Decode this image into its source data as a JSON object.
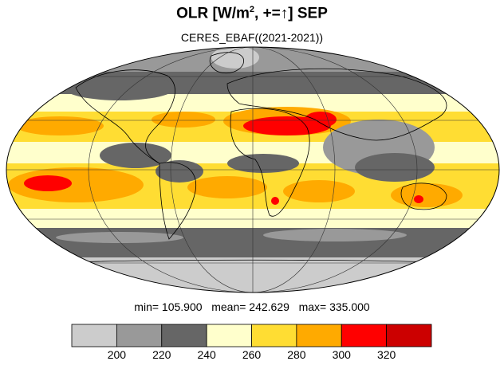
{
  "title": {
    "prefix": "OLR [W/m",
    "exp": "2",
    "mid": ", +=",
    "arrow": "↑",
    "suffix": "] SEP"
  },
  "subtitle": "CERES_EBAF((2021-2021))",
  "stats": {
    "min_label": "min=",
    "min": "105.900",
    "mean_label": "mean=",
    "mean": "242.629",
    "max_label": "max=",
    "max": "335.000"
  },
  "colorbar": {
    "colors": [
      "#cccccc",
      "#999999",
      "#666666",
      "#ffffcc",
      "#ffdd33",
      "#ffaa00",
      "#ff0000",
      "#cc0000"
    ],
    "ticks": [
      "200",
      "220",
      "240",
      "260",
      "280",
      "300",
      "320"
    ]
  },
  "map": {
    "projection": "mollweide",
    "colors": {
      "polar_light": "#cccccc",
      "gray_mid": "#999999",
      "gray_dark": "#666666",
      "pale_yellow": "#ffffcc",
      "yellow": "#ffdd33",
      "orange": "#ffaa00",
      "red": "#ff0000",
      "dark_red": "#cc0000"
    }
  }
}
